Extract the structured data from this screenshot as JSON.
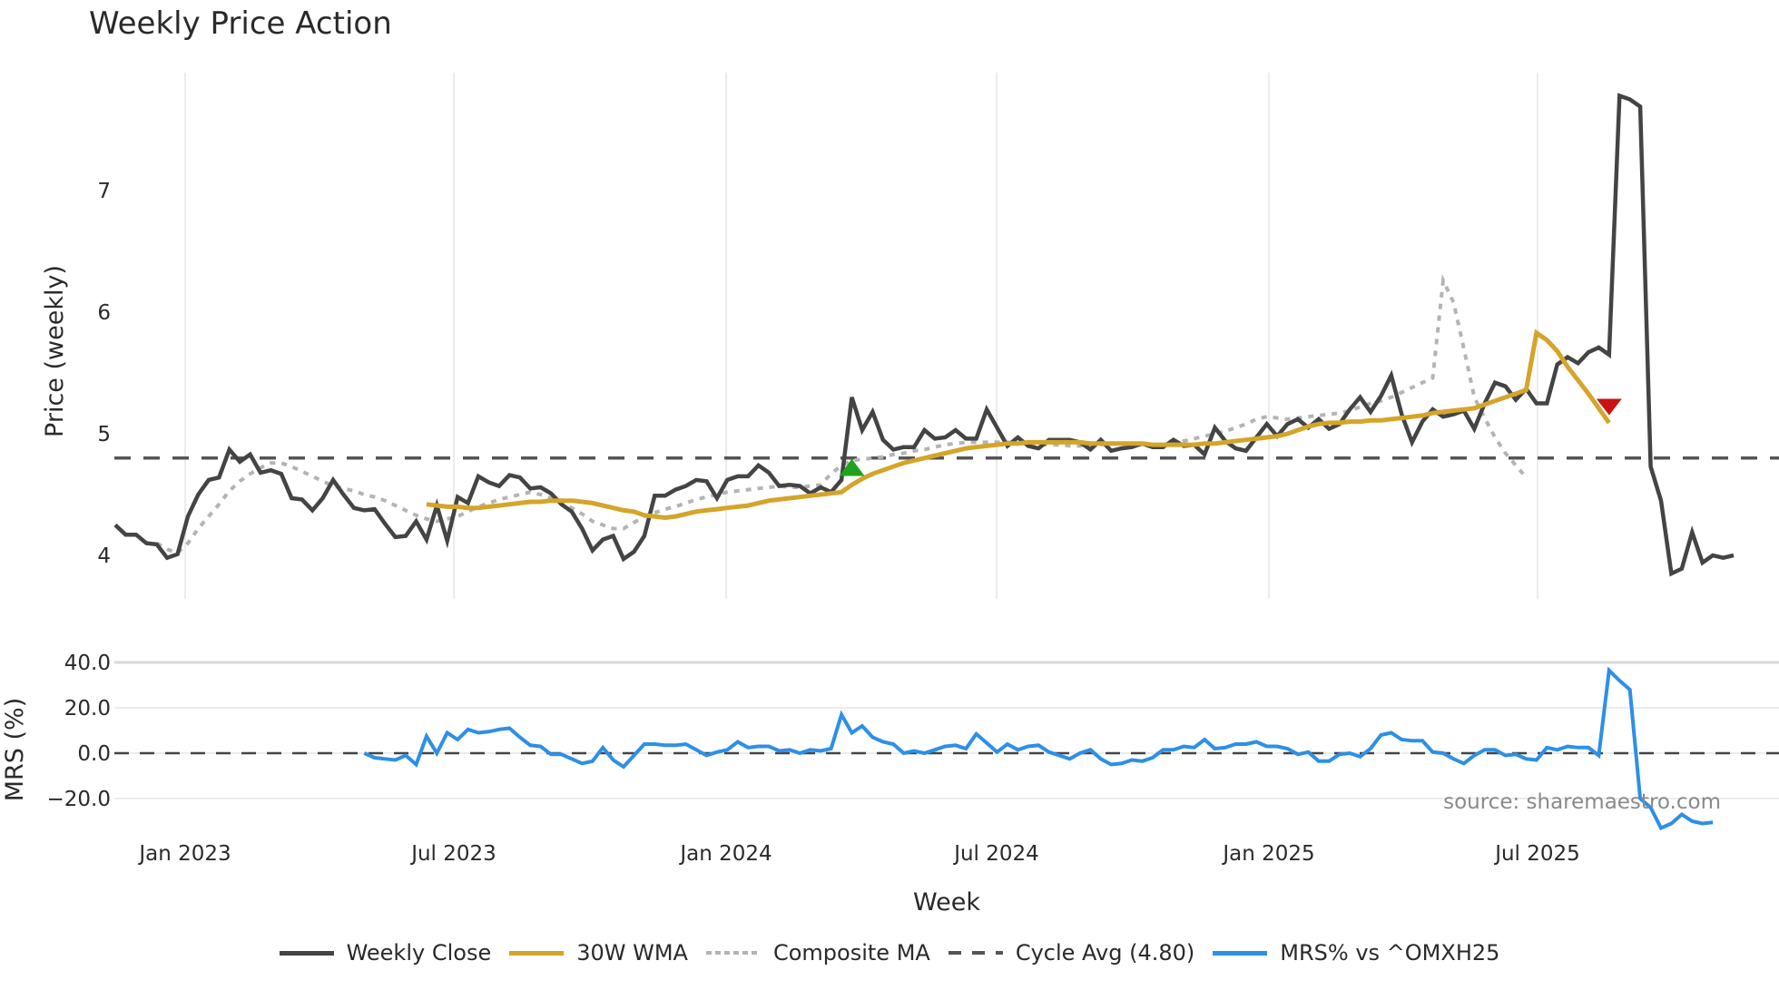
{
  "title": "Weekly Price Action",
  "source_text": "source: sharemaestro.com",
  "colors": {
    "close": "#444444",
    "wma": "#D4A52A",
    "composite": "#B4B4B4",
    "cycle": "#555555",
    "mrs": "#2E8FE6",
    "buy_marker": "#1FA31F",
    "sell_marker": "#CC1111",
    "grid": "#ECECEC"
  },
  "legend": [
    {
      "label": "Weekly Close",
      "style": "solid",
      "color": "#444444"
    },
    {
      "label": "30W WMA",
      "style": "solid",
      "color": "#D4A52A"
    },
    {
      "label": "Composite MA",
      "style": "dotted",
      "color": "#B4B4B4"
    },
    {
      "label": "Cycle Avg (4.80)",
      "style": "dashed",
      "color": "#555555"
    },
    {
      "label": "MRS% vs ^OMXH25",
      "style": "solid",
      "color": "#2E8FE6"
    }
  ],
  "chart_data": [
    {
      "type": "line",
      "title": "Weekly Price Action",
      "xlabel": "Week",
      "ylabel": "Price (weekly)",
      "ylim": [
        3.8,
        7.9
      ],
      "yticks": [
        4,
        5,
        6,
        7
      ],
      "xticks": [
        "Jan 2023",
        "Jul 2023",
        "Jan 2024",
        "Jul 2024",
        "Jan 2025",
        "Jul 2025"
      ],
      "grid": "vertical",
      "x_start_week": 0,
      "x_weeks": 150,
      "series": [
        {
          "name": "Weekly Close",
          "start": 0,
          "values": [
            4.25,
            4.17,
            4.17,
            4.1,
            4.09,
            3.98,
            4.01,
            4.32,
            4.5,
            4.62,
            4.64,
            4.87,
            4.77,
            4.83,
            4.68,
            4.7,
            4.67,
            4.47,
            4.46,
            4.37,
            4.47,
            4.62,
            4.5,
            4.39,
            4.37,
            4.38,
            4.26,
            4.15,
            4.16,
            4.28,
            4.13,
            4.41,
            4.12,
            4.48,
            4.43,
            4.65,
            4.6,
            4.57,
            4.66,
            4.64,
            4.55,
            4.56,
            4.51,
            4.42,
            4.36,
            4.22,
            4.04,
            4.13,
            4.16,
            3.97,
            4.03,
            4.16,
            4.49,
            4.49,
            4.54,
            4.57,
            4.62,
            4.61,
            4.47,
            4.62,
            4.65,
            4.65,
            4.74,
            4.68,
            4.57,
            4.58,
            4.57,
            4.51,
            4.56,
            4.52,
            4.62,
            5.3,
            5.03,
            5.18,
            4.95,
            4.87,
            4.89,
            4.89,
            5.03,
            4.96,
            4.97,
            5.03,
            4.96,
            4.96,
            5.2,
            5.05,
            4.9,
            4.97,
            4.9,
            4.88,
            4.95,
            4.95,
            4.95,
            4.93,
            4.87,
            4.95,
            4.86,
            4.88,
            4.89,
            4.92,
            4.89,
            4.89,
            4.95,
            4.9,
            4.91,
            4.83,
            5.05,
            4.94,
            4.88,
            4.86,
            4.97,
            5.08,
            4.98,
            5.08,
            5.12,
            5.05,
            5.12,
            5.04,
            5.08,
            5.2,
            5.3,
            5.18,
            5.31,
            5.48,
            5.16,
            4.93,
            5.1,
            5.2,
            5.14,
            5.16,
            5.19,
            5.04,
            5.25,
            5.42,
            5.39,
            5.28,
            5.37,
            5.25,
            5.25,
            5.57,
            5.63,
            5.58,
            5.67,
            5.71,
            5.65,
            7.78,
            7.75,
            7.69,
            4.73,
            4.45,
            3.85,
            3.89,
            4.19,
            3.94,
            4.0,
            3.98,
            4.0
          ]
        },
        {
          "name": "30W WMA",
          "start": 30,
          "values": [
            4.42,
            4.41,
            4.4,
            4.4,
            4.39,
            4.39,
            4.4,
            4.41,
            4.42,
            4.43,
            4.44,
            4.44,
            4.45,
            4.45,
            4.45,
            4.44,
            4.43,
            4.41,
            4.39,
            4.37,
            4.36,
            4.33,
            4.32,
            4.31,
            4.32,
            4.34,
            4.36,
            4.37,
            4.38,
            4.39,
            4.4,
            4.41,
            4.43,
            4.45,
            4.46,
            4.47,
            4.48,
            4.49,
            4.5,
            4.51,
            4.52,
            4.58,
            4.63,
            4.67,
            4.7,
            4.73,
            4.76,
            4.78,
            4.8,
            4.82,
            4.84,
            4.86,
            4.88,
            4.89,
            4.9,
            4.91,
            4.92,
            4.92,
            4.93,
            4.93,
            4.93,
            4.93,
            4.93,
            4.93,
            4.92,
            4.92,
            4.92,
            4.92,
            4.92,
            4.92,
            4.91,
            4.91,
            4.91,
            4.91,
            4.91,
            4.92,
            4.92,
            4.93,
            4.94,
            4.95,
            4.96,
            4.97,
            4.98,
            5.0,
            5.03,
            5.06,
            5.08,
            5.09,
            5.09,
            5.1,
            5.1,
            5.11,
            5.11,
            5.12,
            5.13,
            5.14,
            5.15,
            5.17,
            5.18,
            5.19,
            5.2,
            5.21,
            5.24,
            5.27,
            5.3,
            5.33,
            5.36,
            5.83,
            5.77,
            5.68,
            5.55,
            5.44,
            5.33,
            5.21,
            5.09
          ]
        },
        {
          "name": "Composite MA",
          "start": 4,
          "values": [
            4.1,
            4.05,
            4.02,
            4.1,
            4.22,
            4.32,
            4.42,
            4.53,
            4.61,
            4.67,
            4.72,
            4.76,
            4.76,
            4.73,
            4.69,
            4.65,
            4.61,
            4.57,
            4.55,
            4.53,
            4.5,
            4.48,
            4.45,
            4.41,
            4.37,
            4.33,
            4.3,
            4.28,
            4.3,
            4.32,
            4.36,
            4.4,
            4.43,
            4.46,
            4.48,
            4.5,
            4.52,
            4.5,
            4.47,
            4.44,
            4.39,
            4.34,
            4.28,
            4.25,
            4.22,
            4.22,
            4.27,
            4.32,
            4.35,
            4.38,
            4.4,
            4.43,
            4.46,
            4.48,
            4.5,
            4.52,
            4.53,
            4.54,
            4.55,
            4.56,
            4.57,
            4.56,
            4.56,
            4.57,
            4.58,
            4.67,
            4.74,
            4.78,
            4.79,
            4.8,
            4.81,
            4.83,
            4.84,
            4.86,
            4.87,
            4.89,
            4.91,
            4.92,
            4.93,
            4.93,
            4.93,
            4.93,
            4.93,
            4.92,
            4.92,
            4.91,
            4.91,
            4.91,
            4.9,
            4.9,
            4.91,
            4.91,
            4.92,
            4.92,
            4.91,
            4.91,
            4.91,
            4.91,
            4.92,
            4.94,
            4.96,
            4.98,
            5.0,
            5.02,
            5.05,
            5.08,
            5.12,
            5.14,
            5.13,
            5.12,
            5.13,
            5.14,
            5.15,
            5.16,
            5.17,
            5.19,
            5.22,
            5.25,
            5.27,
            5.3,
            5.34,
            5.38,
            5.42,
            5.46,
            6.26,
            6.08,
            5.7,
            5.3,
            5.13,
            4.97,
            4.84,
            4.74,
            4.64
          ]
        },
        {
          "name": "Cycle Avg (4.80)",
          "constant": 4.8
        }
      ],
      "markers": [
        {
          "type": "buy",
          "shape": "triangle-up",
          "week": 71,
          "value": 4.72
        },
        {
          "type": "sell",
          "shape": "triangle-down",
          "week": 144,
          "value": 5.22
        }
      ]
    },
    {
      "type": "line",
      "title": "",
      "xlabel": "Week",
      "ylabel": "MRS (%)",
      "ylim": [
        -34,
        42
      ],
      "yticks": [
        40.0,
        20.0,
        0.0,
        -20.0
      ],
      "ytick_labels": [
        "40.0",
        "20.0",
        "0.0",
        "−20.0"
      ],
      "zero_line": 0,
      "series": [
        {
          "name": "MRS% vs ^OMXH25",
          "start": 24,
          "values": [
            0,
            -2,
            -2.5,
            -3,
            -1,
            -5,
            7.5,
            0,
            9,
            6,
            10.5,
            9,
            9.5,
            10.5,
            11,
            7,
            3.5,
            3,
            -0.5,
            -0.5,
            -2.5,
            -4.5,
            -3.5,
            2.5,
            -3,
            -6,
            -1,
            4,
            4,
            3.5,
            3.5,
            4,
            1.5,
            -1,
            0.5,
            1.5,
            5,
            2.5,
            3,
            3,
            1,
            1.5,
            0,
            1.5,
            1,
            2,
            17,
            9,
            12,
            7,
            5,
            4,
            0,
            1,
            0,
            1.5,
            3,
            3.5,
            2,
            8.5,
            4.5,
            0.5,
            4,
            1.5,
            3,
            3.5,
            0.5,
            -1,
            -2.5,
            0,
            1.5,
            -2.5,
            -5,
            -4.5,
            -3,
            -3.5,
            -2,
            1.5,
            1.5,
            3,
            2.5,
            6,
            2,
            2.5,
            4,
            4,
            5,
            3,
            3,
            2,
            -0.5,
            0.5,
            -3.5,
            -3.5,
            -0.5,
            0,
            -1.5,
            2,
            8,
            9,
            6,
            5.5,
            5.5,
            0.5,
            0,
            -2.5,
            -4.5,
            -1,
            1.5,
            1.5,
            -1,
            -0.5,
            -2.5,
            -3,
            2.5,
            1.5,
            3,
            2.5,
            2.5,
            -1,
            36.5,
            32,
            28,
            -20,
            -24,
            -33,
            -31,
            -27,
            -30,
            -31,
            -30.5
          ]
        }
      ]
    }
  ]
}
